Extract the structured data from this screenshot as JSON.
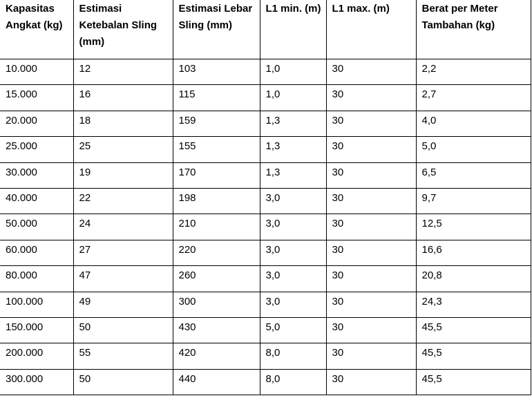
{
  "table": {
    "header": [
      "Kapasitas Angkat (kg)",
      "Estimasi Ketebalan Sling (mm)",
      "Estimasi Lebar Sling (mm)",
      "L1 min. (m)",
      "L1 max. (m)",
      "Berat per Meter Tambahan (kg)"
    ],
    "rows": [
      [
        "10.000",
        "12",
        "103",
        "1,0",
        "30",
        "2,2"
      ],
      [
        "15.000",
        "16",
        "115",
        "1,0",
        "30",
        "2,7"
      ],
      [
        "20.000",
        "18",
        "159",
        "1,3",
        "30",
        "4,0"
      ],
      [
        "25.000",
        "25",
        "155",
        "1,3",
        "30",
        "5,0"
      ],
      [
        "30.000",
        "19",
        "170",
        "1,3",
        "30",
        "6,5"
      ],
      [
        "40.000",
        "22",
        "198",
        "3,0",
        "30",
        "9,7"
      ],
      [
        "50.000",
        "24",
        "210",
        "3,0",
        "30",
        "12,5"
      ],
      [
        "60.000",
        "27",
        "220",
        "3,0",
        "30",
        "16,6"
      ],
      [
        "80.000",
        "47",
        "260",
        "3,0",
        "30",
        "20,8"
      ],
      [
        "100.000",
        "49",
        "300",
        "3,0",
        "30",
        "24,3"
      ],
      [
        "150.000",
        "50",
        "430",
        "5,0",
        "30",
        "45,5"
      ],
      [
        "200.000",
        "55",
        "420",
        "8,0",
        "30",
        "45,5"
      ],
      [
        "300.000",
        "50",
        "440",
        "8,0",
        "30",
        "45,5"
      ]
    ]
  }
}
